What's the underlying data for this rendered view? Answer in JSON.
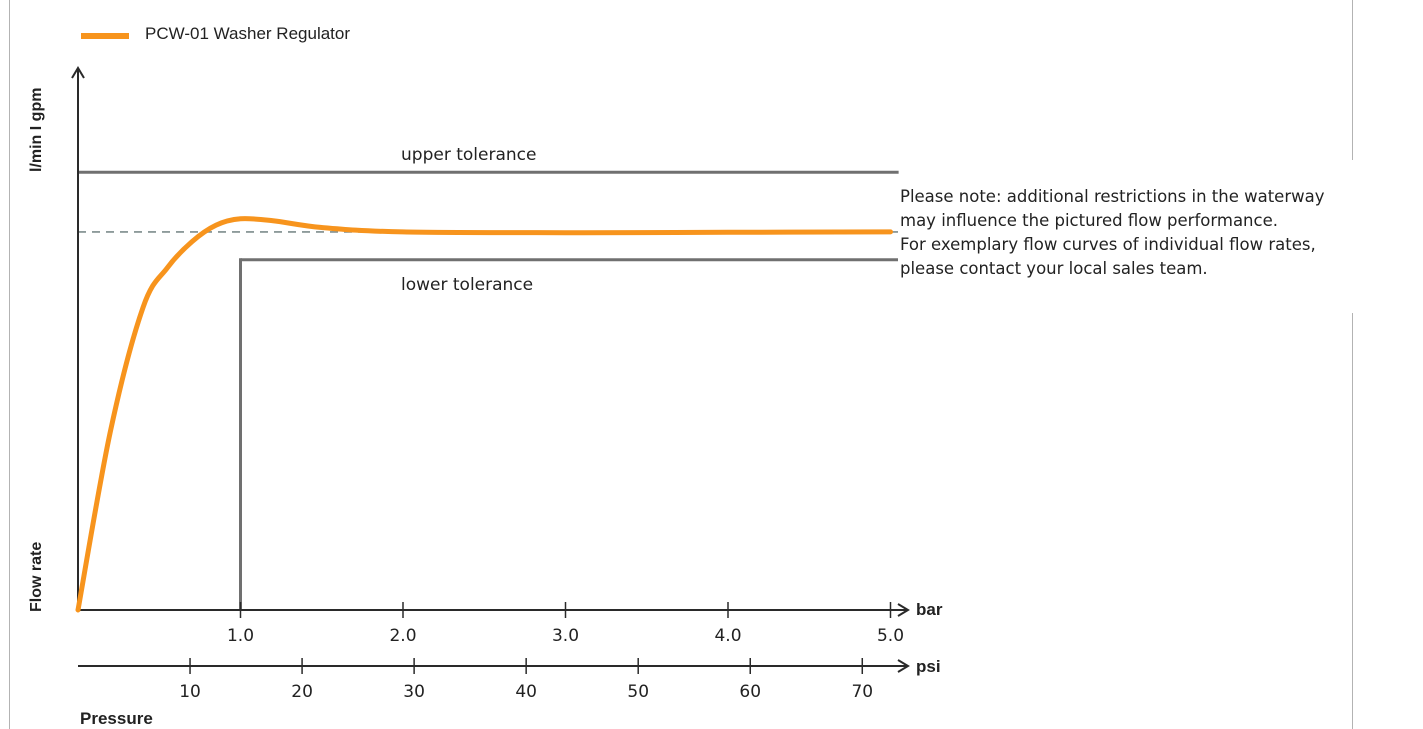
{
  "legend": {
    "label": "PCW-01 Washer Regulator",
    "color": "#f7941d"
  },
  "note_lines": [
    "Please note: additional restrictions in the waterway",
    "may influence the pictured flow performance.",
    "For exemplary flow curves of individual flow rates,",
    "please contact your local sales team."
  ],
  "labels": {
    "y_unit": "l/min I gpm",
    "y_title": "Flow rate",
    "x_title": "Pressure",
    "bar_unit": "bar",
    "psi_unit": "psi"
  },
  "chart_data": {
    "type": "line",
    "title": "",
    "xlabel": "Pressure",
    "ylabel": "Flow rate",
    "bar_axis": {
      "unit": "bar",
      "ticks": [
        1.0,
        2.0,
        3.0,
        4.0,
        5.0
      ],
      "tick_labels": [
        "1.0",
        "2.0",
        "3.0",
        "4.0",
        "5.0"
      ]
    },
    "psi_axis": {
      "unit": "psi",
      "ticks": [
        10,
        20,
        30,
        40,
        50,
        60,
        70
      ],
      "tick_labels": [
        "10",
        "20",
        "30",
        "40",
        "50",
        "60",
        "70"
      ]
    },
    "series": [
      {
        "name": "PCW-01 Washer Regulator",
        "color": "#f7941d",
        "x": [
          0.0,
          0.2,
          0.4,
          0.55,
          0.7,
          0.85,
          1.0,
          1.2,
          1.5,
          2.0,
          3.0,
          4.0,
          5.0
        ],
        "y": [
          0.0,
          0.45,
          0.76,
          0.86,
          0.925,
          0.967,
          0.983,
          0.978,
          0.961,
          0.95,
          0.948,
          0.949,
          0.95
        ]
      }
    ],
    "reference_lines": [
      {
        "label": "upper tolerance",
        "y": 1.1,
        "x_from": 0.0,
        "x_to": 5.05,
        "color": "#707070"
      },
      {
        "label": "lower tolerance",
        "y": 0.88,
        "x_from": 1.0,
        "x_to": 5.05,
        "color": "#707070"
      },
      {
        "label": "",
        "y": 0.95,
        "x_from": 0.0,
        "x_to": 5.05,
        "color": "#7d8c8c",
        "style": "dashed"
      }
    ],
    "lower_tolerance_vertical_x": 1.0,
    "ylim": [
      0,
      1.2
    ],
    "xlim": [
      0,
      5.05
    ]
  }
}
